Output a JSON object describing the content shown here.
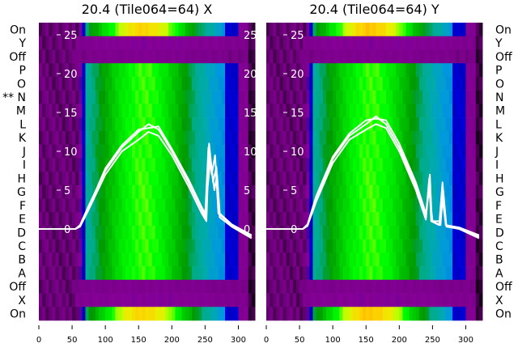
{
  "chart_data": [
    {
      "type": "heatmap",
      "title": "20.4 (Tile064=64) X",
      "row_labels": [
        "On",
        "Y",
        "Off",
        "P",
        "O",
        "** N",
        "M",
        "L",
        "K",
        "J",
        "I",
        "H",
        "G",
        "F",
        "E",
        "D",
        "C",
        "B",
        "A",
        "Off",
        "X",
        "On"
      ],
      "row_peak_levels": [
        0.72,
        0.08,
        0.06,
        0.6,
        0.6,
        0.6,
        0.6,
        0.6,
        0.6,
        0.6,
        0.6,
        0.6,
        0.6,
        0.6,
        0.6,
        0.6,
        0.6,
        0.6,
        0.6,
        0.06,
        0.08,
        0.72
      ],
      "xticks": [
        0,
        50,
        100,
        150,
        200,
        250,
        300
      ],
      "xlim": [
        0,
        325
      ],
      "yticks": [
        0,
        5,
        10,
        15,
        20,
        25
      ],
      "ylim": [
        -3.5,
        27
      ],
      "overlay_color": "#ffffff",
      "traces": [
        [
          [
            0,
            0
          ],
          [
            55,
            0
          ],
          [
            62,
            0.5
          ],
          [
            75,
            3
          ],
          [
            100,
            7.5
          ],
          [
            125,
            10.5
          ],
          [
            150,
            12.5
          ],
          [
            165,
            13.5
          ],
          [
            180,
            12.8
          ],
          [
            200,
            10
          ],
          [
            225,
            6
          ],
          [
            245,
            2.5
          ],
          [
            250,
            1.5
          ],
          [
            255,
            10.5
          ],
          [
            260,
            7
          ],
          [
            265,
            9.5
          ],
          [
            270,
            2
          ],
          [
            290,
            0.5
          ],
          [
            320,
            -1
          ]
        ],
        [
          [
            0,
            0
          ],
          [
            55,
            0
          ],
          [
            62,
            0.3
          ],
          [
            75,
            2.5
          ],
          [
            100,
            7
          ],
          [
            125,
            10
          ],
          [
            150,
            11.5
          ],
          [
            165,
            12.5
          ],
          [
            180,
            12
          ],
          [
            200,
            9.5
          ],
          [
            225,
            5.5
          ],
          [
            245,
            2
          ],
          [
            252,
            1
          ],
          [
            256,
            11
          ],
          [
            262,
            6
          ],
          [
            267,
            8
          ],
          [
            272,
            1.5
          ],
          [
            290,
            0.3
          ],
          [
            320,
            -1.2
          ]
        ],
        [
          [
            0,
            0
          ],
          [
            55,
            0
          ],
          [
            62,
            0.4
          ],
          [
            75,
            2.8
          ],
          [
            100,
            7.8
          ],
          [
            125,
            10.8
          ],
          [
            150,
            12.8
          ],
          [
            165,
            13
          ],
          [
            180,
            13.2
          ],
          [
            200,
            10.3
          ],
          [
            225,
            6.4
          ],
          [
            245,
            2.8
          ],
          [
            250,
            2
          ],
          [
            258,
            9
          ],
          [
            264,
            5
          ],
          [
            268,
            7
          ],
          [
            272,
            2
          ],
          [
            290,
            0.6
          ],
          [
            320,
            -0.8
          ]
        ]
      ]
    },
    {
      "type": "heatmap",
      "title": "20.4 (Tile064=64) Y",
      "row_labels": [
        "On",
        "Y",
        "Off",
        "P",
        "O",
        "N",
        "M",
        "L",
        "K",
        "J",
        "I",
        "H",
        "G",
        "F",
        "E",
        "D",
        "C",
        "B",
        "A",
        "Off",
        "X",
        "On"
      ],
      "row_peak_levels": [
        0.74,
        0.08,
        0.06,
        0.6,
        0.6,
        0.6,
        0.6,
        0.6,
        0.6,
        0.6,
        0.6,
        0.6,
        0.6,
        0.6,
        0.6,
        0.6,
        0.6,
        0.6,
        0.6,
        0.06,
        0.08,
        0.74
      ],
      "xticks": [
        0,
        50,
        100,
        150,
        200,
        250,
        300
      ],
      "xlim": [
        0,
        325
      ],
      "yticks": [
        0,
        5,
        10,
        15,
        20,
        25
      ],
      "ylim": [
        -3.5,
        27
      ],
      "overlay_color": "#ffffff",
      "traces": [
        [
          [
            0,
            0
          ],
          [
            55,
            0
          ],
          [
            62,
            0.5
          ],
          [
            75,
            4
          ],
          [
            100,
            9
          ],
          [
            125,
            12
          ],
          [
            150,
            13.5
          ],
          [
            165,
            14.5
          ],
          [
            180,
            13.5
          ],
          [
            200,
            10.5
          ],
          [
            225,
            5.5
          ],
          [
            240,
            1.5
          ],
          [
            245,
            6.5
          ],
          [
            248,
            1
          ],
          [
            260,
            0.5
          ],
          [
            265,
            6
          ],
          [
            270,
            0.5
          ],
          [
            290,
            0
          ],
          [
            320,
            -1
          ]
        ],
        [
          [
            0,
            0
          ],
          [
            55,
            0
          ],
          [
            62,
            0.4
          ],
          [
            75,
            3.5
          ],
          [
            100,
            8.5
          ],
          [
            125,
            11.5
          ],
          [
            150,
            12.8
          ],
          [
            165,
            13.5
          ],
          [
            180,
            13
          ],
          [
            200,
            10
          ],
          [
            225,
            5
          ],
          [
            240,
            1.2
          ],
          [
            246,
            7
          ],
          [
            249,
            1
          ],
          [
            262,
            0.5
          ],
          [
            266,
            5
          ],
          [
            271,
            0.3
          ],
          [
            290,
            0
          ],
          [
            320,
            -1.2
          ]
        ],
        [
          [
            0,
            0
          ],
          [
            55,
            0
          ],
          [
            62,
            0.6
          ],
          [
            75,
            4.2
          ],
          [
            100,
            9.3
          ],
          [
            125,
            12.3
          ],
          [
            150,
            14
          ],
          [
            165,
            14.2
          ],
          [
            180,
            14
          ],
          [
            200,
            11
          ],
          [
            225,
            6
          ],
          [
            240,
            2
          ],
          [
            245,
            5
          ],
          [
            250,
            1
          ],
          [
            262,
            1
          ],
          [
            265,
            4
          ],
          [
            270,
            0.5
          ],
          [
            290,
            0.2
          ],
          [
            320,
            -0.8
          ]
        ]
      ]
    }
  ]
}
